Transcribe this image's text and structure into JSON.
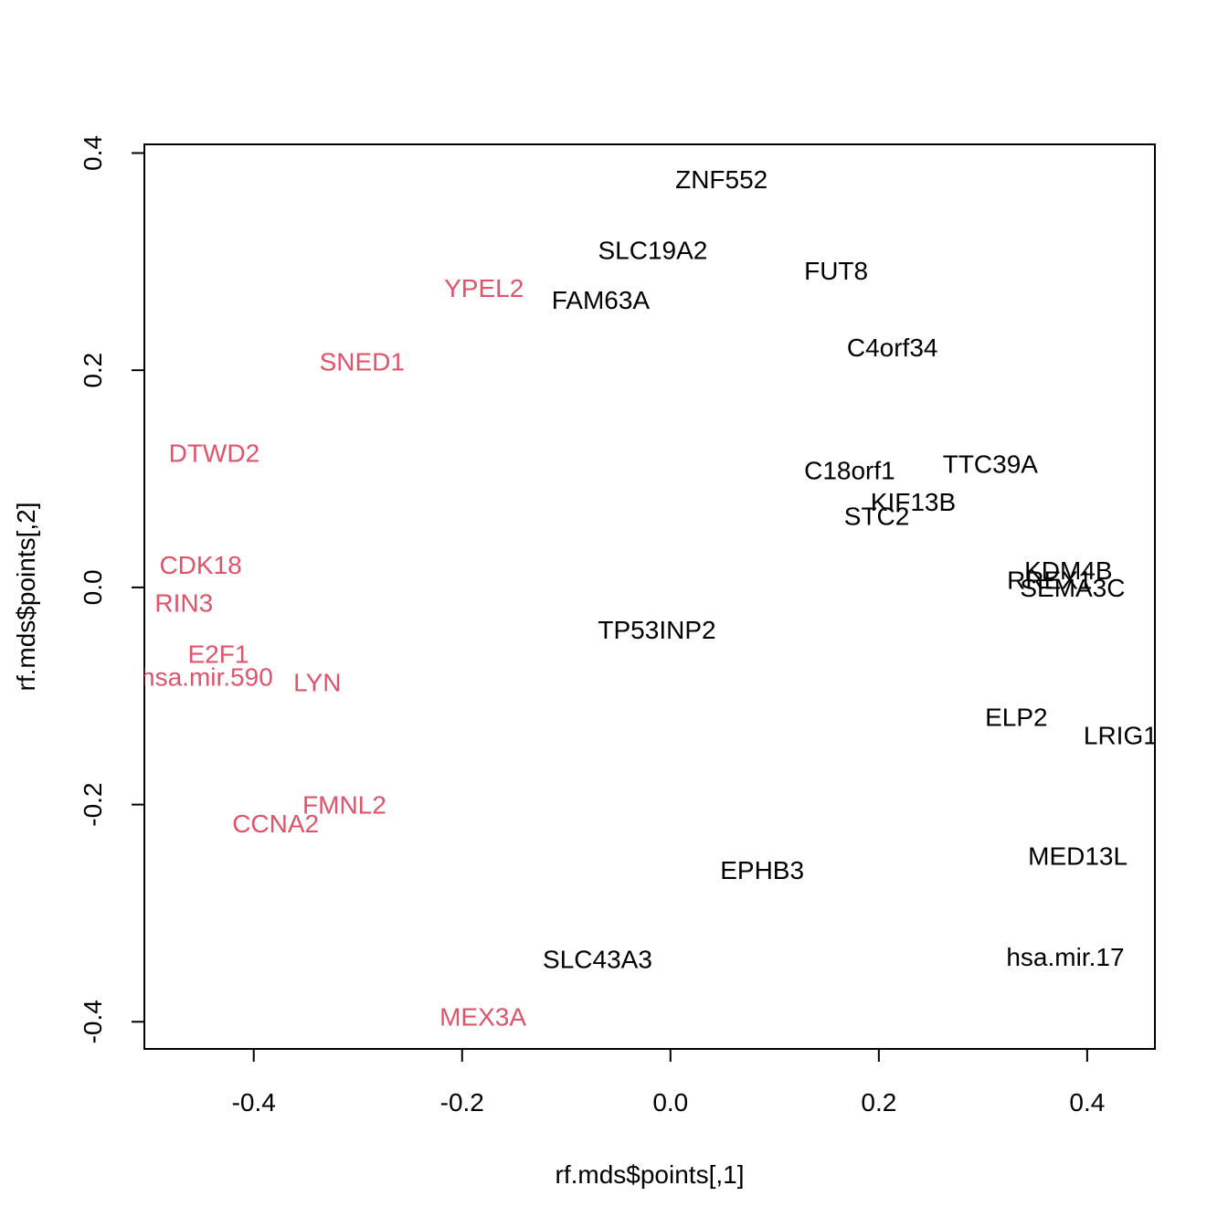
{
  "chart_data": {
    "type": "scatter",
    "xlabel": "rf.mds$points[,1]",
    "ylabel": "rf.mds$points[,2]",
    "xlim": [
      -0.505,
      0.465
    ],
    "ylim": [
      -0.425,
      0.408
    ],
    "x_ticks": [
      -0.4,
      -0.2,
      0.0,
      0.2,
      0.4
    ],
    "x_tick_labels": [
      "-0.4",
      "-0.2",
      "0.0",
      "0.2",
      "0.4"
    ],
    "y_ticks": [
      -0.4,
      -0.2,
      0.0,
      0.2,
      0.4
    ],
    "y_tick_labels": [
      "-0.4",
      "-0.2",
      "0.0",
      "0.2",
      "0.4"
    ],
    "grid": false,
    "colors": {
      "class_a": "#000000",
      "class_b": "#DF536B"
    },
    "points": [
      {
        "label": "ZNF552",
        "x": 0.049,
        "y": 0.376,
        "color": "#000000"
      },
      {
        "label": "SLC19A2",
        "x": -0.017,
        "y": 0.311,
        "color": "#000000"
      },
      {
        "label": "FUT8",
        "x": 0.159,
        "y": 0.292,
        "color": "#000000"
      },
      {
        "label": "FAM63A",
        "x": -0.067,
        "y": 0.265,
        "color": "#000000"
      },
      {
        "label": "C4orf34",
        "x": 0.213,
        "y": 0.221,
        "color": "#000000"
      },
      {
        "label": "TTC39A",
        "x": 0.307,
        "y": 0.114,
        "color": "#000000"
      },
      {
        "label": "C18orf1",
        "x": 0.172,
        "y": 0.108,
        "color": "#000000"
      },
      {
        "label": "KIF13B",
        "x": 0.233,
        "y": 0.079,
        "color": "#000000"
      },
      {
        "label": "STC2",
        "x": 0.198,
        "y": 0.066,
        "color": "#000000"
      },
      {
        "label": "KDM4B",
        "x": 0.382,
        "y": 0.016,
        "color": "#000000"
      },
      {
        "label": "RREX1",
        "x": 0.364,
        "y": 0.007,
        "color": "#000000"
      },
      {
        "label": "SEMA3C",
        "x": 0.386,
        "y": 0.0,
        "color": "#000000"
      },
      {
        "label": "TP53INP2",
        "x": -0.013,
        "y": -0.039,
        "color": "#000000"
      },
      {
        "label": "ELP2",
        "x": 0.332,
        "y": -0.119,
        "color": "#000000"
      },
      {
        "label": "LRIG1",
        "x": 0.432,
        "y": -0.136,
        "color": "#000000"
      },
      {
        "label": "MED13L",
        "x": 0.391,
        "y": -0.247,
        "color": "#000000"
      },
      {
        "label": "EPHB3",
        "x": 0.088,
        "y": -0.26,
        "color": "#000000"
      },
      {
        "label": "hsa.mir.17",
        "x": 0.379,
        "y": -0.34,
        "color": "#000000"
      },
      {
        "label": "SLC43A3",
        "x": -0.07,
        "y": -0.342,
        "color": "#000000"
      },
      {
        "label": "YPEL2",
        "x": -0.179,
        "y": 0.276,
        "color": "#DF536B"
      },
      {
        "label": "SNED1",
        "x": -0.296,
        "y": 0.208,
        "color": "#DF536B"
      },
      {
        "label": "DTWD2",
        "x": -0.438,
        "y": 0.124,
        "color": "#DF536B"
      },
      {
        "label": "CDK18",
        "x": -0.451,
        "y": 0.021,
        "color": "#DF536B"
      },
      {
        "label": "RIN3",
        "x": -0.467,
        "y": -0.014,
        "color": "#DF536B"
      },
      {
        "label": "E2F1",
        "x": -0.434,
        "y": -0.061,
        "color": "#DF536B"
      },
      {
        "label": "hsa.mir.590",
        "x": -0.445,
        "y": -0.082,
        "color": "#DF536B"
      },
      {
        "label": "LYN",
        "x": -0.339,
        "y": -0.087,
        "color": "#DF536B"
      },
      {
        "label": "FMNL2",
        "x": -0.313,
        "y": -0.2,
        "color": "#DF536B"
      },
      {
        "label": "CCNA2",
        "x": -0.379,
        "y": -0.217,
        "color": "#DF536B"
      },
      {
        "label": "MEX3A",
        "x": -0.18,
        "y": -0.395,
        "color": "#DF536B"
      }
    ]
  }
}
